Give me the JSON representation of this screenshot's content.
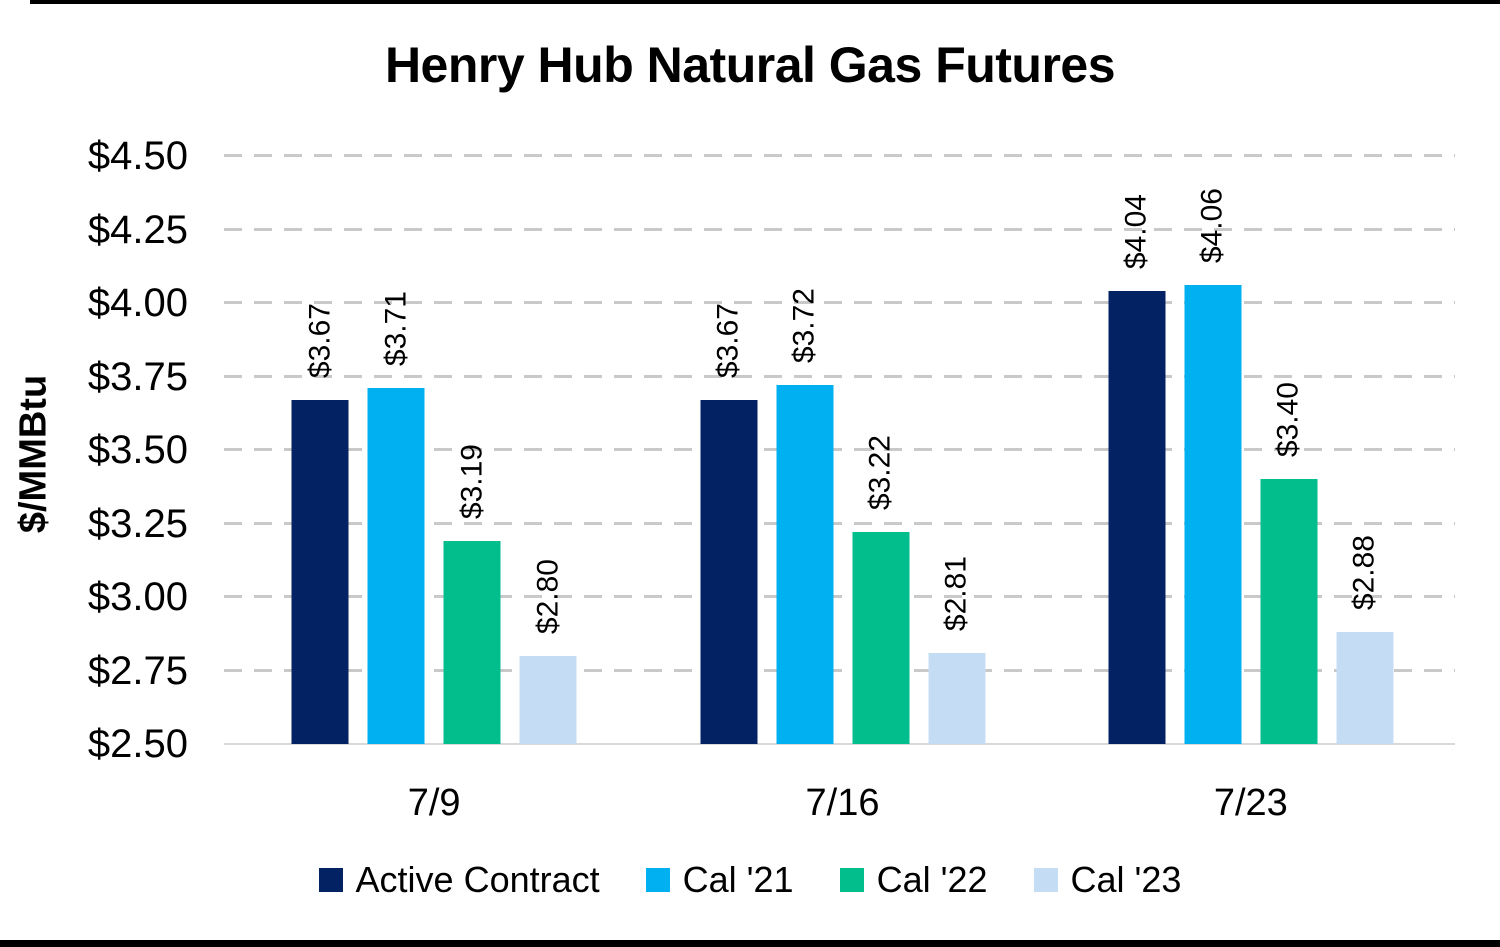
{
  "chart_data": {
    "type": "bar",
    "title": "Henry Hub Natural Gas Futures",
    "ylabel": "$/MMBtu",
    "xlabel": "",
    "categories": [
      "7/9",
      "7/16",
      "7/23"
    ],
    "series": [
      {
        "name": "Active Contract",
        "color": "#032263",
        "values": [
          3.67,
          3.67,
          4.04
        ],
        "labels": [
          "$3.67",
          "$3.67",
          "$4.04"
        ]
      },
      {
        "name": "Cal '21",
        "color": "#00b0f0",
        "values": [
          3.71,
          3.72,
          4.06
        ],
        "labels": [
          "$3.71",
          "$3.72",
          "$4.06"
        ]
      },
      {
        "name": "Cal '22",
        "color": "#01be8c",
        "values": [
          3.19,
          3.22,
          3.4
        ],
        "labels": [
          "$3.19",
          "$3.22",
          "$3.40"
        ]
      },
      {
        "name": "Cal '23",
        "color": "#c4ddf5",
        "values": [
          2.8,
          2.81,
          2.88
        ],
        "labels": [
          "$2.80",
          "$2.81",
          "$2.88"
        ]
      }
    ],
    "ylim": [
      2.5,
      4.5
    ],
    "y_ticks": [
      {
        "value": 2.5,
        "label": "$2.50"
      },
      {
        "value": 2.75,
        "label": "$2.75"
      },
      {
        "value": 3.0,
        "label": "$3.00"
      },
      {
        "value": 3.25,
        "label": "$3.25"
      },
      {
        "value": 3.5,
        "label": "$3.50"
      },
      {
        "value": 3.75,
        "label": "$3.75"
      },
      {
        "value": 4.0,
        "label": "$4.00"
      },
      {
        "value": 4.25,
        "label": "$4.25"
      },
      {
        "value": 4.5,
        "label": "$4.50"
      }
    ],
    "grid": "horizontal-dashed",
    "legend_position": "bottom"
  }
}
